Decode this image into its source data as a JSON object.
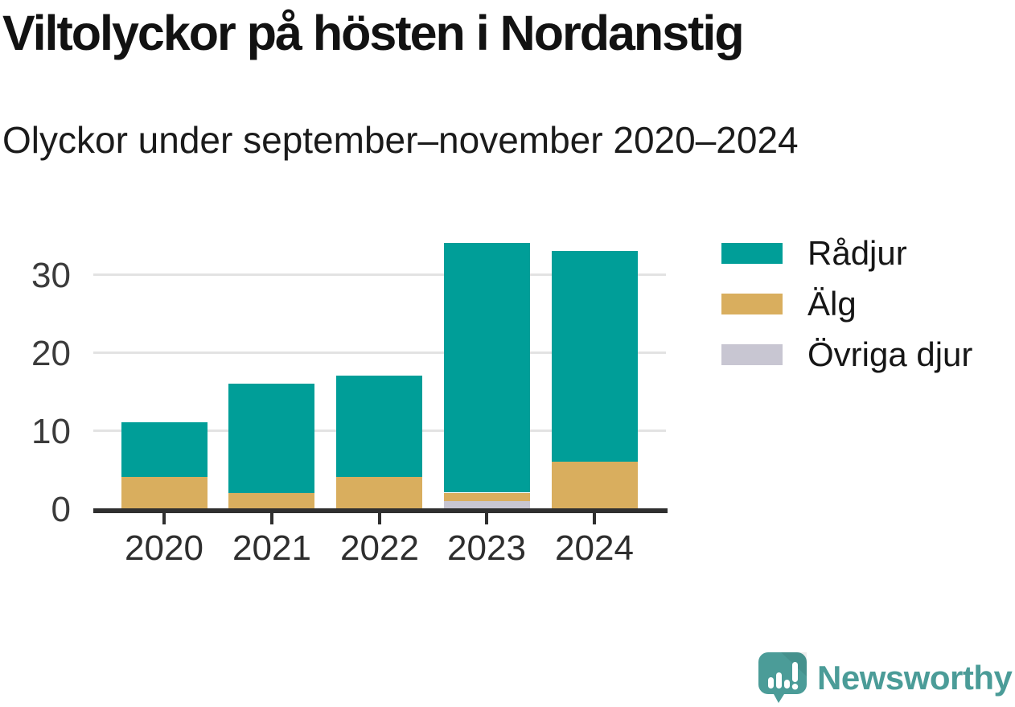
{
  "title": "Viltolyckor på hösten i Nordanstig",
  "subtitle": "Olyckor under september–november 2020–2024",
  "chart_data": {
    "type": "bar",
    "stacked": true,
    "title": "Viltolyckor på hösten i Nordanstig",
    "subtitle": "Olyckor under september–november 2020–2024",
    "categories": [
      "2020",
      "2021",
      "2022",
      "2023",
      "2024"
    ],
    "series": [
      {
        "name": "Rådjur",
        "color": "#009e98",
        "values": [
          7,
          14,
          13,
          32,
          27
        ]
      },
      {
        "name": "Älg",
        "color": "#d9ae5e",
        "values": [
          4,
          2,
          4,
          1,
          6
        ]
      },
      {
        "name": "Övriga djur",
        "color": "#c8c6d2",
        "values": [
          0,
          0,
          0,
          1,
          0
        ]
      }
    ],
    "stack_order_bottom_to_top": [
      "Övriga djur",
      "Älg",
      "Rådjur"
    ],
    "totals": [
      11,
      16,
      17,
      34,
      33
    ],
    "xlabel": "",
    "ylabel": "",
    "y_ticks": [
      0,
      10,
      20,
      30
    ],
    "ylim": [
      0,
      36.3
    ],
    "grid": "horizontal",
    "legend_position": "top-right"
  },
  "legend": {
    "items": [
      {
        "label": "Rådjur",
        "color": "#009e98"
      },
      {
        "label": "Älg",
        "color": "#d9ae5e"
      },
      {
        "label": "Övriga djur",
        "color": "#c8c6d2"
      }
    ]
  },
  "branding": {
    "logo_text": "Newsworthy",
    "logo_color": "#4b9c98"
  },
  "colors": {
    "background": "#ffffff",
    "grid": "#e3e3e3",
    "axis_line": "#2f2f2f",
    "axis_text": "#3b3b3b",
    "title_text": "#121212"
  }
}
